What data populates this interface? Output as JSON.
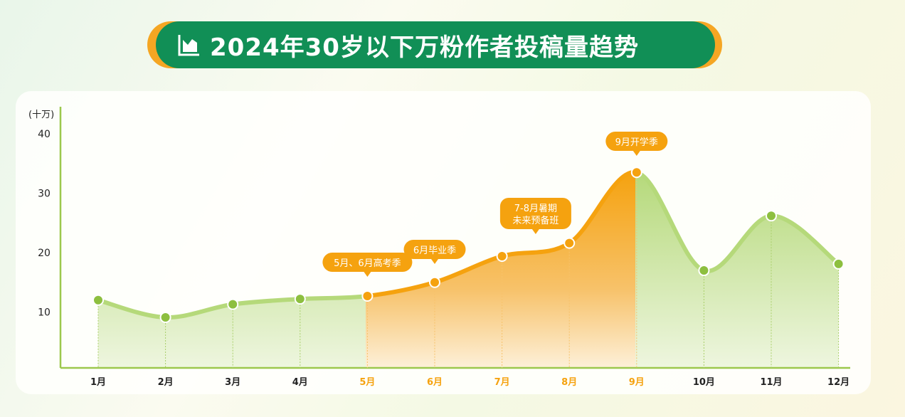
{
  "title": "2024年30岁以下万粉作者投稿量趋势",
  "icon": "area-chart-icon",
  "colors": {
    "green": "#9cc84d",
    "orange": "#f5a20f",
    "title_bg": "#118f56"
  },
  "chart_data": {
    "type": "area",
    "title": "2024年30岁以下万粉作者投稿量趋势",
    "ylabel": "(十万)",
    "ylim": [
      0,
      40
    ],
    "yticks": [
      "10",
      "20",
      "30",
      "40"
    ],
    "categories": [
      "1月",
      "2月",
      "3月",
      "4月",
      "5月",
      "6月",
      "7月",
      "8月",
      "9月",
      "10月",
      "11月",
      "12月"
    ],
    "values": [
      12,
      9.1,
      11.3,
      12.2,
      12.7,
      15,
      19.4,
      21.6,
      33.5,
      17,
      26.2,
      18.1
    ],
    "highlight_range": [
      "5月",
      "9月"
    ],
    "annotations": [
      {
        "at": "5月",
        "text": "5月、6月高考季"
      },
      {
        "at": "6月",
        "text": "6月毕业季"
      },
      {
        "at": "7-8月",
        "text": "7-8月暑期\n未来预备班"
      },
      {
        "at": "9月",
        "text": "9月开学季"
      }
    ],
    "grid": false
  }
}
